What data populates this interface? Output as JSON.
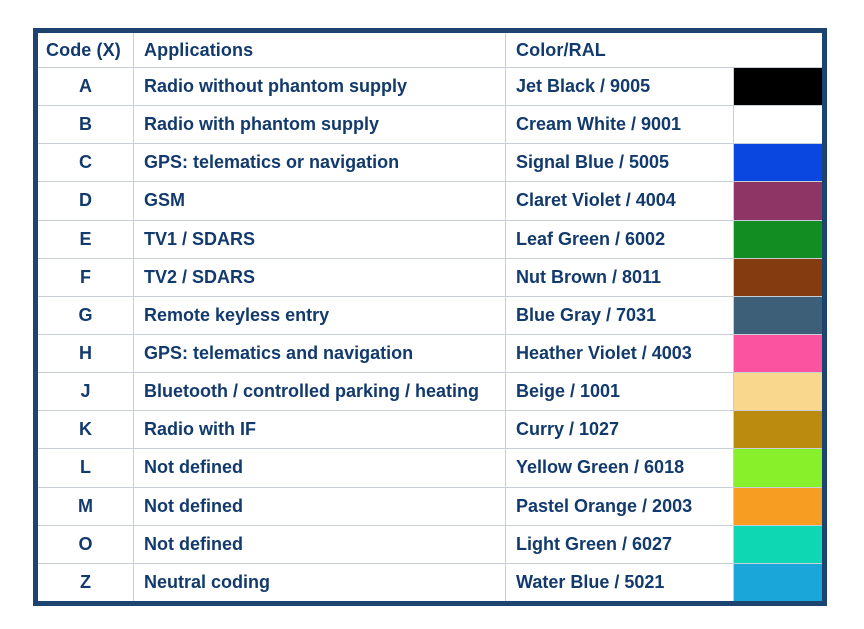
{
  "table": {
    "headers": {
      "code": "Code (X)",
      "applications": "Applications",
      "color": "Color/RAL"
    },
    "rows": [
      {
        "code": "A",
        "application": "Radio without phantom supply",
        "color_name": "Jet Black / 9005",
        "swatch": "#000000"
      },
      {
        "code": "B",
        "application": "Radio with phantom supply",
        "color_name": "Cream White / 9001",
        "swatch": "#ffffff"
      },
      {
        "code": "C",
        "application": "GPS: telematics or navigation",
        "color_name": "Signal Blue / 5005",
        "swatch": "#0a46e0"
      },
      {
        "code": "D",
        "application": "GSM",
        "color_name": "Claret Violet / 4004",
        "swatch": "#8f3566"
      },
      {
        "code": "E",
        "application": "TV1 / SDARS",
        "color_name": "Leaf Green / 6002",
        "swatch": "#118d22"
      },
      {
        "code": "F",
        "application": "TV2 / SDARS",
        "color_name": "Nut Brown / 8011",
        "swatch": "#843b0f"
      },
      {
        "code": "G",
        "application": "Remote keyless entry",
        "color_name": "Blue Gray / 7031",
        "swatch": "#3d6078"
      },
      {
        "code": "H",
        "application": "GPS: telematics and navigation",
        "color_name": "Heather Violet / 4003",
        "swatch": "#fb53a0"
      },
      {
        "code": "J",
        "application": "Bluetooth / controlled parking / heating",
        "color_name": "Beige / 1001",
        "swatch": "#f9d78c"
      },
      {
        "code": "K",
        "application": "Radio with IF",
        "color_name": "Curry / 1027",
        "swatch": "#ba8b0e"
      },
      {
        "code": "L",
        "application": "Not defined",
        "color_name": "Yellow Green / 6018",
        "swatch": "#87f02a"
      },
      {
        "code": "M",
        "application": "Not defined",
        "color_name": "Pastel Orange / 2003",
        "swatch": "#f79d22"
      },
      {
        "code": "O",
        "application": "Not defined",
        "color_name": "Light Green / 6027",
        "swatch": "#0ed7b3"
      },
      {
        "code": "Z",
        "application": "Neutral coding",
        "color_name": "Water Blue / 5021",
        "swatch": "#1aa6d9"
      }
    ],
    "colors": {
      "text": "#123a6c",
      "outer_border": "#1d4470",
      "grid_line": "#c9ced6",
      "background": "#ffffff"
    }
  }
}
